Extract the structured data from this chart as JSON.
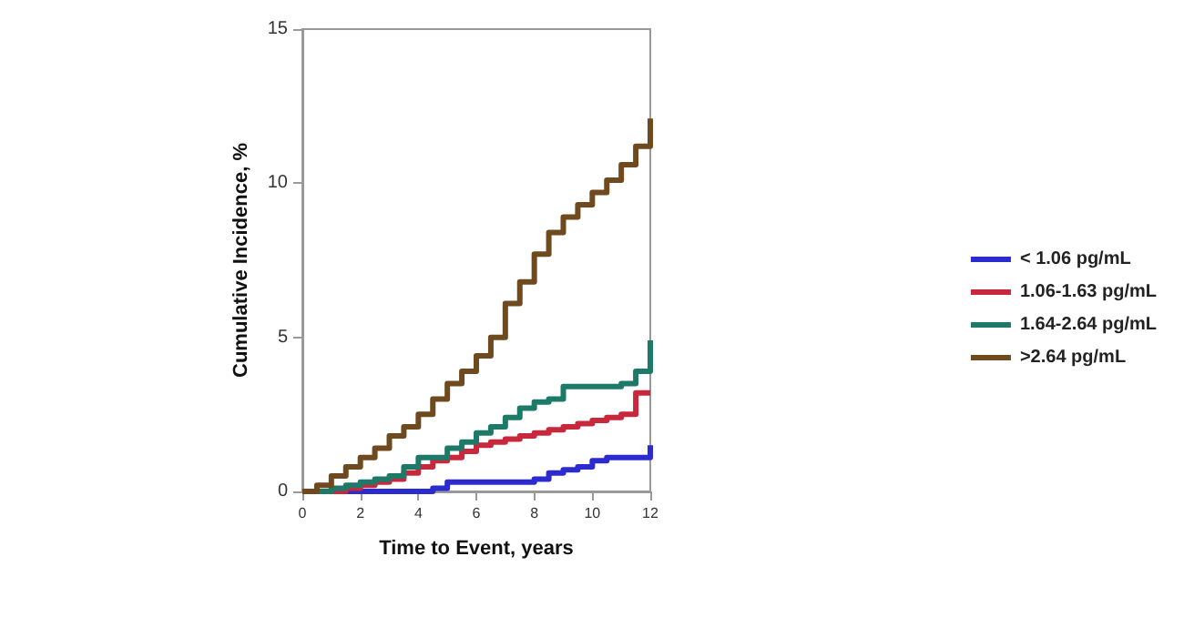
{
  "chart_data": {
    "type": "step",
    "xlabel": "Time to Event, years",
    "ylabel": "Cumulative Incidence, %",
    "x": [
      0,
      0.5,
      1,
      1.5,
      2,
      2.5,
      3,
      3.5,
      4,
      4.5,
      5,
      5.5,
      6,
      6.5,
      7,
      7.5,
      8,
      8.5,
      9,
      9.5,
      10,
      10.5,
      11,
      11.5,
      12
    ],
    "series": [
      {
        "name": "< 1.06 pg/mL",
        "color": "#2b2bd0",
        "values": [
          null,
          null,
          0,
          0,
          0,
          0,
          0,
          0,
          0,
          0.1,
          0.3,
          0.3,
          0.3,
          0.3,
          0.3,
          0.3,
          0.4,
          0.6,
          0.7,
          0.8,
          1.0,
          1.1,
          1.1,
          1.1,
          1.5
        ]
      },
      {
        "name": "1.06-1.63 pg/mL",
        "color": "#c8283c",
        "values": [
          0,
          0,
          0,
          0.1,
          0.2,
          0.3,
          0.4,
          0.6,
          0.8,
          1.0,
          1.1,
          1.3,
          1.5,
          1.6,
          1.7,
          1.8,
          1.9,
          2.0,
          2.1,
          2.2,
          2.3,
          2.4,
          2.5,
          3.2,
          3.2
        ]
      },
      {
        "name": "1.64-2.64 pg/mL",
        "color": "#1e7a68",
        "values": [
          0,
          0,
          0.1,
          0.2,
          0.3,
          0.4,
          0.5,
          0.8,
          1.1,
          1.1,
          1.4,
          1.6,
          1.9,
          2.1,
          2.4,
          2.7,
          2.9,
          3.0,
          3.4,
          3.4,
          3.4,
          3.4,
          3.5,
          3.9,
          4.9
        ]
      },
      {
        "name": ">2.64 pg/mL",
        "color": "#6e4a1e",
        "values": [
          0,
          0.2,
          0.5,
          0.8,
          1.1,
          1.4,
          1.8,
          2.1,
          2.5,
          3.0,
          3.5,
          3.9,
          4.4,
          5.0,
          6.1,
          6.8,
          7.7,
          8.4,
          8.9,
          9.3,
          9.7,
          10.1,
          10.6,
          11.2,
          12.1
        ]
      }
    ],
    "xlim": [
      0,
      12
    ],
    "xticks": [
      0,
      2,
      4,
      6,
      8,
      10,
      12
    ],
    "ylim": [
      0,
      15
    ],
    "yticks": [
      0,
      5,
      10,
      15
    ],
    "grid": false,
    "legend": "right",
    "marker": "none",
    "line_style": "solid"
  }
}
